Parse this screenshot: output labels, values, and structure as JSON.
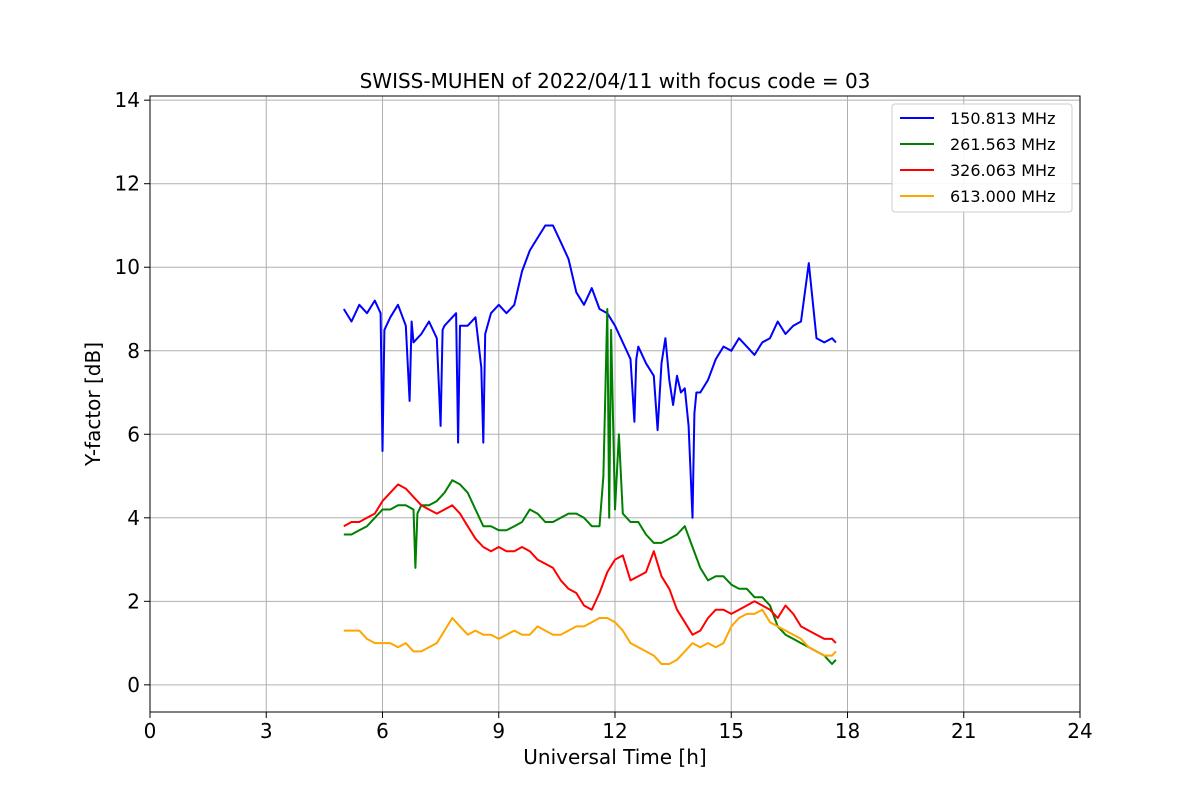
{
  "chart_data": {
    "type": "line",
    "title": "SWISS-MUHEN of 2022/04/11 with focus code = 03",
    "xlabel": "Universal Time [h]",
    "ylabel": "Y-factor [dB]",
    "xlim": [
      0,
      24
    ],
    "ylim": [
      -0.65,
      14.1
    ],
    "xticks": [
      0,
      3,
      6,
      9,
      12,
      15,
      18,
      21,
      24
    ],
    "yticks": [
      0,
      2,
      4,
      6,
      8,
      10,
      12,
      14
    ],
    "grid": true,
    "legend_position": "top-right",
    "series": [
      {
        "name": "150.813 MHz",
        "color": "#0000ff",
        "x": [
          5.0,
          5.2,
          5.4,
          5.6,
          5.8,
          5.95,
          6.0,
          6.05,
          6.2,
          6.4,
          6.6,
          6.7,
          6.75,
          6.8,
          7.0,
          7.2,
          7.4,
          7.5,
          7.55,
          7.6,
          7.8,
          7.9,
          7.95,
          8.0,
          8.2,
          8.4,
          8.55,
          8.6,
          8.65,
          8.8,
          9.0,
          9.2,
          9.4,
          9.6,
          9.8,
          10.0,
          10.2,
          10.4,
          10.6,
          10.8,
          11.0,
          11.2,
          11.4,
          11.6,
          11.8,
          12.0,
          12.2,
          12.4,
          12.5,
          12.55,
          12.6,
          12.8,
          13.0,
          13.1,
          13.2,
          13.3,
          13.4,
          13.5,
          13.6,
          13.7,
          13.8,
          13.9,
          14.0,
          14.05,
          14.1,
          14.2,
          14.4,
          14.6,
          14.8,
          15.0,
          15.2,
          15.4,
          15.6,
          15.8,
          16.0,
          16.2,
          16.4,
          16.6,
          16.8,
          17.0,
          17.2,
          17.4,
          17.6,
          17.7
        ],
        "y": [
          9.0,
          8.7,
          9.1,
          8.9,
          9.2,
          8.9,
          5.6,
          8.5,
          8.8,
          9.1,
          8.6,
          6.8,
          8.7,
          8.2,
          8.4,
          8.7,
          8.3,
          6.2,
          8.5,
          8.6,
          8.8,
          8.9,
          5.8,
          8.6,
          8.6,
          8.8,
          7.6,
          5.8,
          8.4,
          8.9,
          9.1,
          8.9,
          9.1,
          9.9,
          10.4,
          10.7,
          11.0,
          11.0,
          10.6,
          10.2,
          9.4,
          9.1,
          9.5,
          9.0,
          8.9,
          8.6,
          8.2,
          7.8,
          6.3,
          7.8,
          8.1,
          7.7,
          7.4,
          6.1,
          7.7,
          8.3,
          7.3,
          6.7,
          7.4,
          7.0,
          7.1,
          6.2,
          4.0,
          6.5,
          7.0,
          7.0,
          7.3,
          7.8,
          8.1,
          8.0,
          8.3,
          8.1,
          7.9,
          8.2,
          8.3,
          8.7,
          8.4,
          8.6,
          8.7,
          10.1,
          8.3,
          8.2,
          8.3,
          8.2
        ]
      },
      {
        "name": "261.563 MHz",
        "color": "#008000",
        "x": [
          5.0,
          5.2,
          5.4,
          5.6,
          5.8,
          6.0,
          6.2,
          6.4,
          6.6,
          6.8,
          6.85,
          6.9,
          7.0,
          7.2,
          7.4,
          7.6,
          7.8,
          8.0,
          8.2,
          8.4,
          8.6,
          8.8,
          9.0,
          9.2,
          9.4,
          9.6,
          9.8,
          10.0,
          10.2,
          10.4,
          10.6,
          10.8,
          11.0,
          11.2,
          11.4,
          11.6,
          11.7,
          11.8,
          11.85,
          11.9,
          12.0,
          12.1,
          12.2,
          12.4,
          12.6,
          12.8,
          13.0,
          13.2,
          13.4,
          13.6,
          13.8,
          14.0,
          14.2,
          14.4,
          14.6,
          14.8,
          15.0,
          15.2,
          15.4,
          15.6,
          15.8,
          16.0,
          16.2,
          16.4,
          16.6,
          16.8,
          17.0,
          17.2,
          17.4,
          17.6,
          17.7
        ],
        "y": [
          3.6,
          3.6,
          3.7,
          3.8,
          4.0,
          4.2,
          4.2,
          4.3,
          4.3,
          4.2,
          2.8,
          4.1,
          4.3,
          4.3,
          4.4,
          4.6,
          4.9,
          4.8,
          4.6,
          4.2,
          3.8,
          3.8,
          3.7,
          3.7,
          3.8,
          3.9,
          4.2,
          4.1,
          3.9,
          3.9,
          4.0,
          4.1,
          4.1,
          4.0,
          3.8,
          3.8,
          5.0,
          9.0,
          4.0,
          8.5,
          4.2,
          6.0,
          4.1,
          3.9,
          3.9,
          3.6,
          3.4,
          3.4,
          3.5,
          3.6,
          3.8,
          3.3,
          2.8,
          2.5,
          2.6,
          2.6,
          2.4,
          2.3,
          2.3,
          2.1,
          2.1,
          1.9,
          1.4,
          1.2,
          1.1,
          1.0,
          0.9,
          0.8,
          0.7,
          0.5,
          0.6
        ]
      },
      {
        "name": "326.063 MHz",
        "color": "#ff0000",
        "x": [
          5.0,
          5.2,
          5.4,
          5.6,
          5.8,
          6.0,
          6.2,
          6.4,
          6.6,
          6.8,
          7.0,
          7.2,
          7.4,
          7.6,
          7.8,
          8.0,
          8.2,
          8.4,
          8.6,
          8.8,
          9.0,
          9.2,
          9.4,
          9.6,
          9.8,
          10.0,
          10.2,
          10.4,
          10.6,
          10.8,
          11.0,
          11.2,
          11.4,
          11.6,
          11.8,
          12.0,
          12.2,
          12.4,
          12.6,
          12.8,
          13.0,
          13.2,
          13.4,
          13.6,
          13.8,
          14.0,
          14.2,
          14.4,
          14.6,
          14.8,
          15.0,
          15.2,
          15.4,
          15.6,
          15.8,
          16.0,
          16.2,
          16.4,
          16.6,
          16.8,
          17.0,
          17.2,
          17.4,
          17.6,
          17.7
        ],
        "y": [
          3.8,
          3.9,
          3.9,
          4.0,
          4.1,
          4.4,
          4.6,
          4.8,
          4.7,
          4.5,
          4.3,
          4.2,
          4.1,
          4.2,
          4.3,
          4.1,
          3.8,
          3.5,
          3.3,
          3.2,
          3.3,
          3.2,
          3.2,
          3.3,
          3.2,
          3.0,
          2.9,
          2.8,
          2.5,
          2.3,
          2.2,
          1.9,
          1.8,
          2.2,
          2.7,
          3.0,
          3.1,
          2.5,
          2.6,
          2.7,
          3.2,
          2.6,
          2.3,
          1.8,
          1.5,
          1.2,
          1.3,
          1.6,
          1.8,
          1.8,
          1.7,
          1.8,
          1.9,
          2.0,
          1.9,
          1.8,
          1.6,
          1.9,
          1.7,
          1.4,
          1.3,
          1.2,
          1.1,
          1.1,
          1.0
        ]
      },
      {
        "name": "613.000 MHz",
        "color": "#ffa500",
        "x": [
          5.0,
          5.2,
          5.4,
          5.6,
          5.8,
          6.0,
          6.2,
          6.4,
          6.6,
          6.8,
          7.0,
          7.2,
          7.4,
          7.6,
          7.8,
          8.0,
          8.2,
          8.4,
          8.6,
          8.8,
          9.0,
          9.2,
          9.4,
          9.6,
          9.8,
          10.0,
          10.2,
          10.4,
          10.6,
          10.8,
          11.0,
          11.2,
          11.4,
          11.6,
          11.8,
          12.0,
          12.2,
          12.4,
          12.6,
          12.8,
          13.0,
          13.2,
          13.4,
          13.6,
          13.8,
          14.0,
          14.2,
          14.4,
          14.6,
          14.8,
          15.0,
          15.2,
          15.4,
          15.6,
          15.8,
          16.0,
          16.2,
          16.4,
          16.6,
          16.8,
          17.0,
          17.2,
          17.4,
          17.6,
          17.7
        ],
        "y": [
          1.3,
          1.3,
          1.3,
          1.1,
          1.0,
          1.0,
          1.0,
          0.9,
          1.0,
          0.8,
          0.8,
          0.9,
          1.0,
          1.3,
          1.6,
          1.4,
          1.2,
          1.3,
          1.2,
          1.2,
          1.1,
          1.2,
          1.3,
          1.2,
          1.2,
          1.4,
          1.3,
          1.2,
          1.2,
          1.3,
          1.4,
          1.4,
          1.5,
          1.6,
          1.6,
          1.5,
          1.3,
          1.0,
          0.9,
          0.8,
          0.7,
          0.5,
          0.5,
          0.6,
          0.8,
          1.0,
          0.9,
          1.0,
          0.9,
          1.0,
          1.4,
          1.6,
          1.7,
          1.7,
          1.8,
          1.5,
          1.4,
          1.3,
          1.2,
          1.1,
          0.9,
          0.8,
          0.7,
          0.7,
          0.8
        ]
      }
    ]
  }
}
